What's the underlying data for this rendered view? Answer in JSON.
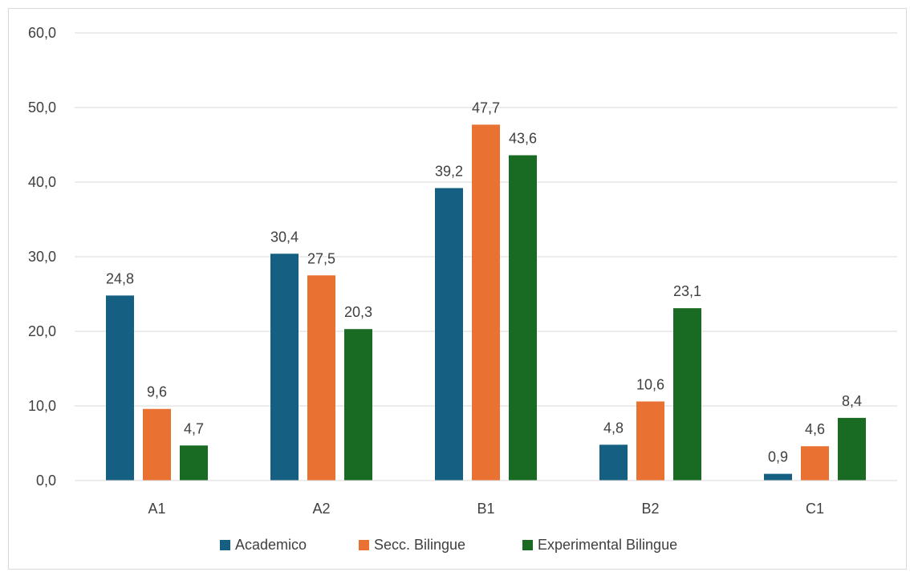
{
  "chart_data": {
    "type": "bar",
    "categories": [
      "A1",
      "A2",
      "B1",
      "B2",
      "C1"
    ],
    "series": [
      {
        "name": "Academico",
        "color": "#156082",
        "values": [
          24.8,
          30.4,
          39.2,
          4.8,
          0.9
        ],
        "labels": [
          "24,8",
          "30,4",
          "39,2",
          "4,8",
          "0,9"
        ]
      },
      {
        "name": "Secc. Bilingue",
        "color": "#E97132",
        "values": [
          9.6,
          27.5,
          47.7,
          10.6,
          4.6
        ],
        "labels": [
          "9,6",
          "27,5",
          "47,7",
          "10,6",
          "4,6"
        ]
      },
      {
        "name": "Experimental Bilingue",
        "color": "#196B24",
        "values": [
          4.7,
          20.3,
          43.6,
          23.1,
          8.4
        ],
        "labels": [
          "4,7",
          "20,3",
          "43,6",
          "23,1",
          "8,4"
        ]
      }
    ],
    "y_ticks": [
      0,
      10,
      20,
      30,
      40,
      50,
      60
    ],
    "y_tick_labels": [
      "0,0",
      "10,0",
      "20,0",
      "30,0",
      "40,0",
      "50,0",
      "60,0"
    ],
    "ylim": [
      0,
      60
    ],
    "grid": true,
    "legend_position": "bottom"
  }
}
